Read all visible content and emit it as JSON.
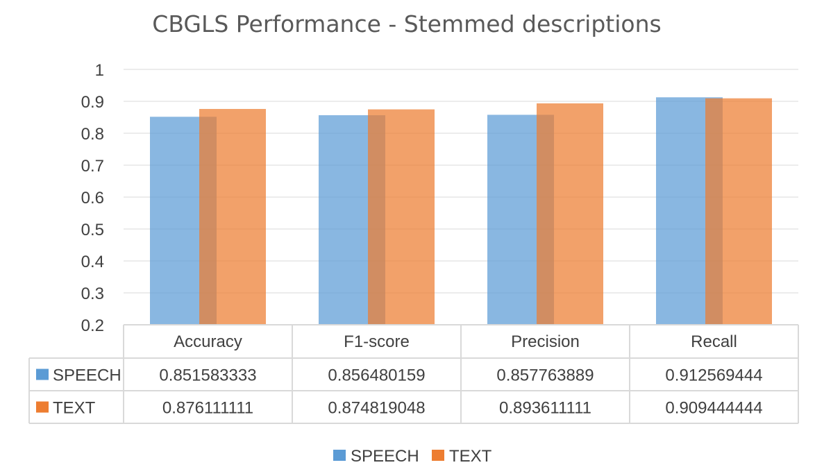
{
  "chart_data": {
    "type": "bar",
    "title": "CBGLS Performance - Stemmed descriptions",
    "categories": [
      "Accuracy",
      "F1-score",
      "Precision",
      "Recall"
    ],
    "series": [
      {
        "name": "SPEECH",
        "color": "#5b9bd5",
        "values": [
          0.851583333,
          0.856480159,
          0.857763889,
          0.912569444
        ],
        "labels": [
          "0.851583333",
          "0.856480159",
          "0.857763889",
          "0.912569444"
        ]
      },
      {
        "name": "TEXT",
        "color": "#ed7d31",
        "values": [
          0.876111111,
          0.874819048,
          0.893611111,
          0.909444444
        ],
        "labels": [
          "0.876111111",
          "0.874819048",
          "0.893611111",
          "0.909444444"
        ]
      }
    ],
    "ylim": [
      0.2,
      1
    ],
    "yticks": [
      "1",
      "0.9",
      "0.8",
      "0.7",
      "0.6",
      "0.5",
      "0.4",
      "0.3",
      "0.2"
    ],
    "grid": true,
    "legend": "bottom",
    "data_table": true
  }
}
